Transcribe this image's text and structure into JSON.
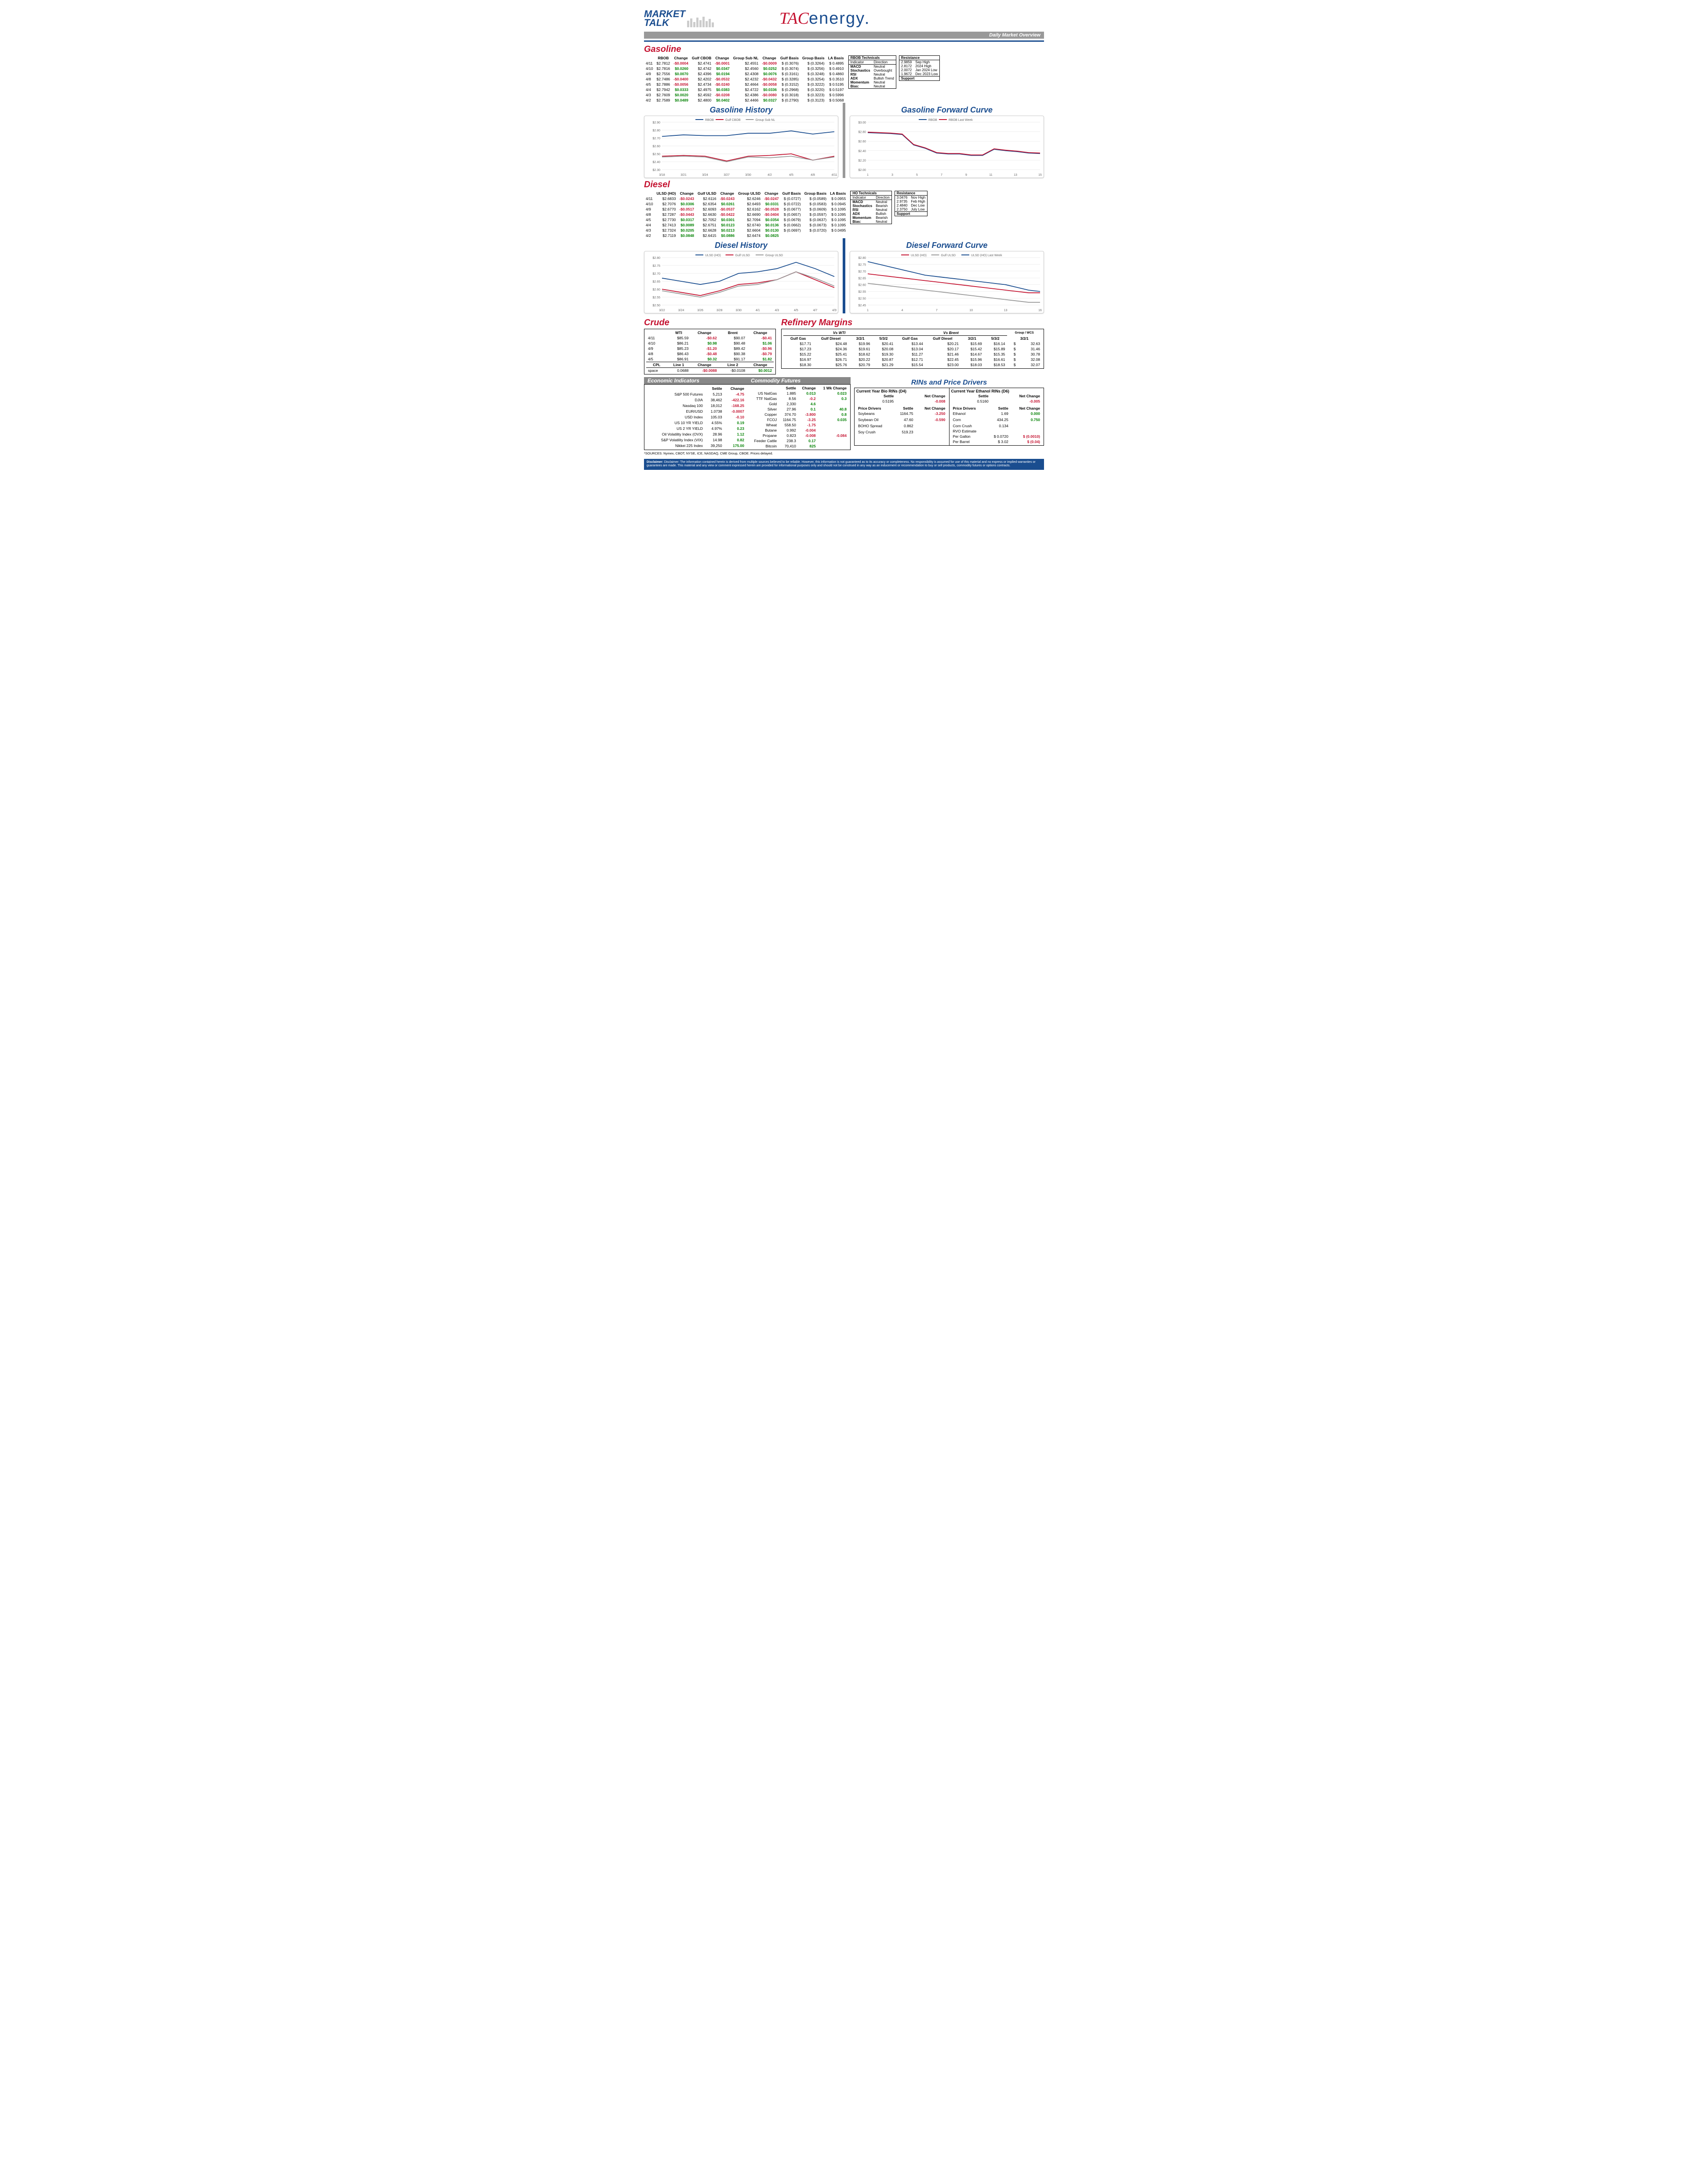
{
  "header": {
    "market": "MARKET",
    "talk": "TALK",
    "tac": "TAC",
    "energy": "energy",
    "banner": "Daily Market Overview"
  },
  "gasoline": {
    "title": "Gasoline",
    "cols": [
      "",
      "RBOB",
      "Change",
      "Gulf CBOB",
      "Change",
      "Group Sub NL",
      "Change",
      "Gulf Basis",
      "Group Basis",
      "LA Basis"
    ],
    "rows": [
      [
        "4/11",
        "$2.7812",
        "-$0.0004",
        "$2.4741",
        "-$0.0001",
        "$2.4551",
        "-$0.0009",
        "$ (0.3076)",
        "$ (0.3264)",
        "$ 0.4895"
      ],
      [
        "4/10",
        "$2.7816",
        "$0.0260",
        "$2.4742",
        "$0.0347",
        "$2.4560",
        "$0.0252",
        "$ (0.3074)",
        "$ (0.3256)",
        "$ 0.4910"
      ],
      [
        "4/9",
        "$2.7556",
        "$0.0070",
        "$2.4396",
        "$0.0194",
        "$2.4308",
        "$0.0076",
        "$ (0.3161)",
        "$ (0.3248)",
        "$ 0.4860"
      ],
      [
        "4/8",
        "$2.7486",
        "-$0.0400",
        "$2.4202",
        "-$0.0532",
        "$2.4232",
        "-$0.0432",
        "$ (0.3285)",
        "$ (0.3254)",
        "$ 0.3510"
      ],
      [
        "4/5",
        "$2.7886",
        "-$0.0056",
        "$2.4734",
        "-$0.0240",
        "$2.4664",
        "-$0.0058",
        "$ (0.3152)",
        "$ (0.3222)",
        "$ 0.5195"
      ],
      [
        "4/4",
        "$2.7942",
        "$0.0333",
        "$2.4975",
        "$0.0383",
        "$2.4722",
        "$0.0336",
        "$ (0.2968)",
        "$ (0.3220)",
        "$ 0.5197"
      ],
      [
        "4/3",
        "$2.7609",
        "$0.0020",
        "$2.4592",
        "-$0.0208",
        "$2.4386",
        "-$0.0080",
        "$ (0.3018)",
        "$ (0.3223)",
        "$ 0.5996"
      ],
      [
        "4/2",
        "$2.7589",
        "$0.0489",
        "$2.4800",
        "$0.0402",
        "$2.4466",
        "$0.0327",
        "$ (0.2790)",
        "$ (0.3123)",
        "$ 0.5068"
      ]
    ],
    "tech_title": "RBOB Technicals",
    "tech_cols": [
      "Indicator",
      "Direction"
    ],
    "tech_rows": [
      [
        "MACD",
        "Neutral"
      ],
      [
        "Stochastics",
        "Overbought"
      ],
      [
        "RSI",
        "Neutral"
      ],
      [
        "ADX",
        "Bullish Trend"
      ],
      [
        "Momentum",
        "Neutral"
      ],
      [
        "Bias:",
        "Neutral"
      ]
    ],
    "res_title": "Resistance",
    "res_rows": [
      [
        "2.9859",
        "Sep High"
      ],
      [
        "2.8172",
        "2024 High"
      ]
    ],
    "sup_rows": [
      [
        "2.0072",
        "Jan 2024 Low"
      ],
      [
        "1.9672",
        "Dec 2023 Low"
      ]
    ],
    "sup_title": "Support",
    "hist_title": "Gasoline History",
    "fwd_title": "Gasoline Forward Curve",
    "hist_chart": {
      "ylim": [
        2.3,
        2.9
      ],
      "yticks": [
        "$2.30",
        "$2.40",
        "$2.50",
        "$2.60",
        "$2.70",
        "$2.80",
        "$2.90"
      ],
      "xlabels": [
        "3/18",
        "3/21",
        "3/24",
        "3/27",
        "3/30",
        "4/2",
        "4/5",
        "4/8",
        "4/11"
      ],
      "series": [
        {
          "name": "RBOB",
          "color": "#1a4d8f",
          "values": [
            2.72,
            2.74,
            2.73,
            2.73,
            2.76,
            2.76,
            2.79,
            2.75,
            2.78
          ]
        },
        {
          "name": "Gulf CBOB",
          "color": "#c41230",
          "values": [
            2.47,
            2.48,
            2.47,
            2.41,
            2.47,
            2.48,
            2.5,
            2.42,
            2.47
          ]
        },
        {
          "name": "Group Sub NL",
          "color": "#999999",
          "values": [
            2.46,
            2.47,
            2.46,
            2.4,
            2.46,
            2.45,
            2.47,
            2.42,
            2.46
          ]
        }
      ]
    },
    "fwd_chart": {
      "ylim": [
        2.0,
        3.0
      ],
      "yticks": [
        "$2.00",
        "$2.20",
        "$2.40",
        "$2.60",
        "$2.80",
        "$3.00"
      ],
      "xlabels": [
        "1",
        "3",
        "5",
        "7",
        "9",
        "11",
        "13",
        "15"
      ],
      "series": [
        {
          "name": "RBOB",
          "color": "#1a4d8f",
          "values": [
            2.78,
            2.77,
            2.76,
            2.74,
            2.52,
            2.45,
            2.35,
            2.33,
            2.33,
            2.3,
            2.3,
            2.43,
            2.4,
            2.38,
            2.35,
            2.34
          ]
        },
        {
          "name": "RBOB Last Week",
          "color": "#c41230",
          "values": [
            2.79,
            2.78,
            2.77,
            2.75,
            2.53,
            2.46,
            2.36,
            2.34,
            2.34,
            2.31,
            2.31,
            2.44,
            2.41,
            2.39,
            2.36,
            2.35
          ]
        }
      ]
    }
  },
  "diesel": {
    "title": "Diesel",
    "cols": [
      "",
      "ULSD (HO)",
      "Change",
      "Gulf ULSD",
      "Change",
      "Group ULSD",
      "Change",
      "Gulf Basis",
      "Group Basis",
      "LA Basis"
    ],
    "rows": [
      [
        "4/11",
        "$2.6833",
        "-$0.0243",
        "$2.6116",
        "-$0.0243",
        "$2.6246",
        "-$0.0247",
        "$ (0.0727)",
        "$ (0.0589)",
        "$ 0.0955"
      ],
      [
        "4/10",
        "$2.7076",
        "$0.0306",
        "$2.6354",
        "$0.0261",
        "$2.6493",
        "$0.0331",
        "$ (0.0722)",
        "$ (0.0583)",
        "$ 0.0945"
      ],
      [
        "4/9",
        "$2.6770",
        "-$0.0517",
        "$2.6093",
        "-$0.0537",
        "$2.6162",
        "-$0.0528",
        "$ (0.0677)",
        "$ (0.0609)",
        "$ 0.1095"
      ],
      [
        "4/8",
        "$2.7287",
        "-$0.0443",
        "$2.6630",
        "-$0.0422",
        "$2.6690",
        "-$0.0404",
        "$ (0.0657)",
        "$ (0.0597)",
        "$ 0.1095"
      ],
      [
        "4/5",
        "$2.7730",
        "$0.0317",
        "$2.7052",
        "$0.0301",
        "$2.7094",
        "$0.0354",
        "$ (0.0679)",
        "$ (0.0637)",
        "$ 0.1095"
      ],
      [
        "4/4",
        "$2.7413",
        "$0.0089",
        "$2.6751",
        "$0.0123",
        "$2.6740",
        "$0.0136",
        "$ (0.0662)",
        "$ (0.0673)",
        "$ 0.1095"
      ],
      [
        "4/3",
        "$2.7324",
        "$0.0205",
        "$2.6628",
        "$0.0213",
        "$2.6604",
        "$0.0130",
        "$ (0.0697)",
        "$ (0.0720)",
        "$ 0.0495"
      ],
      [
        "4/2",
        "$2.7119",
        "$0.0848",
        "$2.6415",
        "$0.0886",
        "$2.6474",
        "$0.0825",
        "",
        "",
        ""
      ]
    ],
    "tech_title": "HO Technicals",
    "tech_rows": [
      [
        "MACD",
        "Neutral"
      ],
      [
        "Stochastics",
        "Bearish"
      ],
      [
        "RSI",
        "Neutral"
      ],
      [
        "ADX",
        "Bullish"
      ],
      [
        "Momentum",
        "Bearish"
      ],
      [
        "Bias:",
        "Neutral"
      ]
    ],
    "res_rows": [
      [
        "3.0476",
        "Nov High"
      ],
      [
        "2.9735",
        "Feb High"
      ]
    ],
    "sup_rows": [
      [
        "2.4840",
        "Dec Low"
      ],
      [
        "2.3750",
        "July Low"
      ]
    ],
    "hist_title": "Diesel History",
    "fwd_title": "Diesel Forward Curve",
    "hist_chart": {
      "ylim": [
        2.5,
        2.8
      ],
      "yticks": [
        "$2.50",
        "$2.55",
        "$2.60",
        "$2.65",
        "$2.70",
        "$2.75",
        "$2.80"
      ],
      "xlabels": [
        "3/22",
        "3/24",
        "3/26",
        "3/28",
        "3/30",
        "4/1",
        "4/3",
        "4/5",
        "4/7",
        "4/9"
      ],
      "series": [
        {
          "name": "ULSD (HO)",
          "color": "#1a4d8f",
          "values": [
            2.67,
            2.65,
            2.63,
            2.65,
            2.7,
            2.71,
            2.73,
            2.77,
            2.73,
            2.68
          ]
        },
        {
          "name": "Gulf ULSD",
          "color": "#c41230",
          "values": [
            2.6,
            2.58,
            2.56,
            2.59,
            2.63,
            2.64,
            2.66,
            2.71,
            2.66,
            2.61
          ]
        },
        {
          "name": "Group ULSD",
          "color": "#999999",
          "values": [
            2.59,
            2.57,
            2.55,
            2.58,
            2.62,
            2.63,
            2.66,
            2.71,
            2.67,
            2.62
          ]
        }
      ]
    },
    "fwd_chart": {
      "ylim": [
        2.45,
        2.8
      ],
      "yticks": [
        "$2.45",
        "$2.50",
        "$2.55",
        "$2.60",
        "$2.65",
        "$2.70",
        "$2.75",
        "$2.80"
      ],
      "xlabels": [
        "1",
        "4",
        "7",
        "10",
        "13",
        "16"
      ],
      "series": [
        {
          "name": "ULSD (HO)",
          "color": "#c41230",
          "values": [
            2.68,
            2.67,
            2.66,
            2.65,
            2.64,
            2.63,
            2.62,
            2.61,
            2.6,
            2.59,
            2.58,
            2.57,
            2.56,
            2.55,
            2.54,
            2.54
          ]
        },
        {
          "name": "Gulf ULSD",
          "color": "#999999",
          "values": [
            2.61,
            2.6,
            2.59,
            2.58,
            2.57,
            2.56,
            2.55,
            2.54,
            2.53,
            2.52,
            2.51,
            2.5,
            2.49,
            2.48,
            2.47,
            2.47
          ]
        },
        {
          "name": "ULSD (HO) Last Week",
          "color": "#1a4d8f",
          "values": [
            2.77,
            2.75,
            2.73,
            2.71,
            2.69,
            2.67,
            2.66,
            2.65,
            2.64,
            2.63,
            2.62,
            2.61,
            2.6,
            2.58,
            2.56,
            2.55
          ]
        }
      ]
    }
  },
  "crude": {
    "title": "Crude",
    "cols": [
      "",
      "WTI",
      "Change",
      "Brent",
      "Change"
    ],
    "rows": [
      [
        "4/11",
        "$85.59",
        "-$0.62",
        "$90.07",
        "-$0.41"
      ],
      [
        "4/10",
        "$86.21",
        "$0.98",
        "$90.48",
        "$1.06"
      ],
      [
        "4/9",
        "$85.23",
        "-$1.20",
        "$89.42",
        "-$0.96"
      ],
      [
        "4/8",
        "$86.43",
        "-$0.48",
        "$90.38",
        "-$0.79"
      ],
      [
        "4/5",
        "$86.91",
        "$0.32",
        "$91.17",
        "$1.82"
      ]
    ],
    "cpl": [
      "CPL",
      "Line 1",
      "Change",
      "Line 2",
      "Change"
    ],
    "cpl_row": [
      "space",
      "0.0688",
      "-$0.0088",
      "-$0.0108",
      "$0.0012"
    ]
  },
  "refinery": {
    "title": "Refinery Margins",
    "wti_header": "Vs WTI",
    "brent_header": "Vs Brent",
    "grp_header": "Group / WCS",
    "sub_cols": [
      "Gulf Gas",
      "Gulf Diesel",
      "3/2/1",
      "5/3/2"
    ],
    "rows": [
      [
        "$17.71",
        "$24.48",
        "$19.96",
        "$20.41",
        "$13.44",
        "$20.21",
        "$15.69",
        "$16.14",
        "$",
        "32.63"
      ],
      [
        "$17.23",
        "$24.36",
        "$19.61",
        "$20.08",
        "$13.04",
        "$20.17",
        "$15.42",
        "$15.89",
        "$",
        "31.46"
      ],
      [
        "$15.22",
        "$25.41",
        "$18.62",
        "$19.30",
        "$11.27",
        "$21.46",
        "$14.67",
        "$15.35",
        "$",
        "30.78"
      ],
      [
        "$16.97",
        "$26.71",
        "$20.22",
        "$20.87",
        "$12.71",
        "$22.45",
        "$15.96",
        "$16.61",
        "$",
        "32.08"
      ],
      [
        "$18.30",
        "$25.76",
        "$20.79",
        "$21.29",
        "$15.54",
        "$23.00",
        "$18.03",
        "$18.53",
        "$",
        "32.07"
      ]
    ]
  },
  "econ": {
    "title": "Economic Indicators",
    "cols": [
      "",
      "Settle",
      "Change"
    ],
    "rows": [
      [
        "S&P 500 Futures",
        "5,213",
        "-4.75"
      ],
      [
        "DJIA",
        "38,462",
        "-422.16"
      ],
      [
        "Nasdaq 100",
        "18,012",
        "-168.25"
      ],
      [
        "EUR/USD",
        "1.0738",
        "-0.0007"
      ],
      [
        "USD Index",
        "105.03",
        "-0.10"
      ],
      [
        "US 10 YR YIELD",
        "4.55%",
        "0.19"
      ],
      [
        "US 2 YR YIELD",
        "4.97%",
        "0.23"
      ],
      [
        "Oil Volatility Index (OVX)",
        "28.96",
        "1.12"
      ],
      [
        "S&P Volatility Index (VIX)",
        "14.98",
        "0.82"
      ],
      [
        "Nikkei 225 Index",
        "39,250",
        "175.00"
      ]
    ]
  },
  "comm": {
    "title": "Commodity Futures",
    "cols": [
      "",
      "Settle",
      "Change",
      "1 Wk Change"
    ],
    "rows": [
      [
        "US NatGas",
        "1.885",
        "0.013",
        "0.023"
      ],
      [
        "TTF NatGas",
        "8.56",
        "-0.2",
        "0.3"
      ],
      [
        "Gold",
        "2,330",
        "4.6",
        ""
      ],
      [
        "Silver",
        "27.96",
        "0.1",
        "40.8"
      ],
      [
        "Copper",
        "374.70",
        "-3.800",
        "0.8"
      ],
      [
        "FCOJ",
        "1164.75",
        "-3.25",
        "0.035"
      ],
      [
        "Wheat",
        "558.50",
        "-1.75",
        ""
      ],
      [
        "Butane",
        "0.992",
        "-0.004",
        ""
      ],
      [
        "Propane",
        "0.823",
        "-0.008",
        "-0.084"
      ],
      [
        "Feeder Cattle",
        "238.3",
        "0.17",
        ""
      ],
      [
        "Bitcoin",
        "70,410",
        "825",
        ""
      ]
    ]
  },
  "rins": {
    "title": "RINs and Price Drivers",
    "d4_title": "Current Year Bio RINs (D4)",
    "d6_title": "Current Year Ethanol RINs (D6)",
    "d4": [
      [
        "",
        "Settle",
        "Net Change"
      ],
      [
        "",
        "0.5195",
        "-0.008"
      ]
    ],
    "d6": [
      [
        "",
        "Settle",
        "Net Change"
      ],
      [
        "",
        "0.5160",
        "-0.005"
      ]
    ],
    "drivers_left": [
      [
        "Price Drivers",
        "Settle",
        "Net Change"
      ],
      [
        "Soybeans",
        "1164.75",
        "-3.250"
      ],
      [
        "",
        "",
        ""
      ],
      [
        "Soybean Oil",
        "47.60",
        "-0.590"
      ],
      [
        "",
        "",
        ""
      ],
      [
        "BOHO Spread",
        "0.862",
        ""
      ],
      [
        "",
        "",
        ""
      ],
      [
        "Soy Crush",
        "519.23",
        ""
      ]
    ],
    "drivers_right": [
      [
        "Price Drivers",
        "Settle",
        "Net Change"
      ],
      [
        "Ethanol",
        "1.69",
        "0.000"
      ],
      [
        "",
        "",
        ""
      ],
      [
        "Corn",
        "434.25",
        "0.750"
      ],
      [
        "",
        "",
        ""
      ],
      [
        "Corn Crush",
        "0.134",
        ""
      ],
      [
        "RVO Estimate",
        "",
        ""
      ],
      [
        "Per Gallon",
        "$ 0.0720",
        "$ (0.0010)"
      ],
      [
        "Per Barrel",
        "$ 3.02",
        "$ (0.04)"
      ]
    ]
  },
  "sources": "*SOURCES: Nymex, CBOT, NYSE, ICE, NASDAQ, CME Group, CBOE.   Prices delayed.",
  "disclaimer": "Disclaimer: The information contained herein is derived from multiple sources believed to be reliable. However, this information is not guaranteed as to its accuracy or completeness. No responsibility is assumed for use of this material and no express or implied warranties or guarantees are made. This material and any view or comment expressed herein are provided for informational purposes only and should not be construed in any way as an inducement or recommendation to buy or sell products, commodity futures or options contracts."
}
